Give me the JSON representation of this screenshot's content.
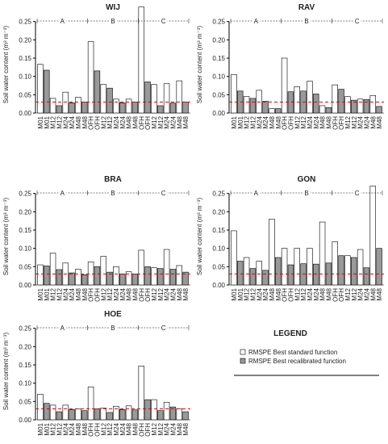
{
  "chart_data": [
    {
      "type": "bar",
      "title": "WIJ",
      "y_label": "Soil water content (m³ m⁻³)",
      "categories": [
        "M01",
        "M12",
        "M24",
        "M48",
        "OFH",
        "M12",
        "M24",
        "M48",
        "OFH",
        "M12",
        "M24",
        "M48"
      ],
      "groups": [
        "A",
        "B",
        "C"
      ],
      "series": [
        {
          "name": "RMSPE Best standard function",
          "color": "#ffffff",
          "values": [
            0.133,
            0.04,
            0.057,
            0.043,
            0.195,
            0.078,
            0.038,
            0.038,
            0.29,
            0.078,
            0.08,
            0.088
          ]
        },
        {
          "name": "RMSPE Best recalibrated function",
          "color": "#999999",
          "values": [
            0.117,
            0.02,
            0.028,
            0.03,
            0.115,
            0.068,
            0.028,
            0.03,
            0.085,
            0.02,
            0.027,
            0.03
          ]
        }
      ],
      "ylim": [
        0,
        0.3
      ],
      "yticks": [
        {
          "value": 0,
          "label": "0.00"
        },
        0.05,
        {
          "value": 0.1,
          "label": "0.10"
        },
        0.15,
        {
          "value": 0.2,
          "label": "0.20"
        },
        0.25
      ],
      "reference_line": 0.03,
      "reference_color": "#e00000"
    },
    {
      "type": "bar",
      "title": "RAV",
      "y_label": "Soil water content (m³ m⁻³)",
      "categories": [
        "M01",
        "M12",
        "M24",
        "M48",
        "OFH",
        "M12",
        "M24",
        "M48",
        "OFH",
        "M12",
        "M24",
        "M48"
      ],
      "groups": [
        "A",
        "B",
        "C"
      ],
      "series": [
        {
          "name": "RMSPE Best standard function",
          "color": "#ffffff",
          "values": [
            0.105,
            0.045,
            0.062,
            0.012,
            0.15,
            0.072,
            0.087,
            0.02,
            0.077,
            0.045,
            0.038,
            0.048
          ]
        },
        {
          "name": "RMSPE Best recalibrated function",
          "color": "#999999",
          "values": [
            0.06,
            0.04,
            0.032,
            0.012,
            0.058,
            0.06,
            0.052,
            0.015,
            0.065,
            0.035,
            0.037,
            0.018
          ]
        }
      ],
      "ylim": [
        0,
        0.3
      ],
      "yticks": [
        {
          "value": 0,
          "label": "0.00"
        },
        0.05,
        {
          "value": 0.1,
          "label": "0.10"
        },
        0.15,
        {
          "value": 0.2,
          "label": "0.20"
        },
        0.25
      ],
      "reference_line": 0.03,
      "reference_color": "#e00000"
    },
    {
      "type": "bar",
      "title": "BRA",
      "y_label": "Soil water content (m³ m⁻³)",
      "categories": [
        "M01",
        "M12",
        "M24",
        "M48",
        "OFH",
        "M12",
        "M24",
        "M48",
        "OFH",
        "M12",
        "M24",
        "M48"
      ],
      "groups": [
        "A",
        "B",
        "C"
      ],
      "series": [
        {
          "name": "RMSPE Best standard function",
          "color": "#ffffff",
          "values": [
            0.055,
            0.087,
            0.06,
            0.043,
            0.063,
            0.078,
            0.05,
            0.036,
            0.095,
            0.047,
            0.097,
            0.053
          ]
        },
        {
          "name": "RMSPE Best recalibrated function",
          "color": "#999999",
          "values": [
            0.052,
            0.042,
            0.033,
            0.028,
            0.05,
            0.035,
            0.03,
            0.03,
            0.05,
            0.045,
            0.043,
            0.035
          ]
        }
      ],
      "ylim": [
        0,
        0.3
      ],
      "yticks": [
        {
          "value": 0,
          "label": "0.00"
        },
        0.05,
        {
          "value": 0.1,
          "label": "0.10"
        },
        0.15,
        {
          "value": 0.2,
          "label": "0.20"
        },
        0.25
      ],
      "reference_line": 0.03,
      "reference_color": "#e00000"
    },
    {
      "type": "bar",
      "title": "GON",
      "y_label": "Soil water content (m³ m⁻³)",
      "categories": [
        "M01",
        "M12",
        "M24",
        "M48",
        "OFH",
        "M12",
        "M24",
        "M48",
        "OFH",
        "M12",
        "M24",
        "M48"
      ],
      "groups": [
        "A",
        "B",
        "C"
      ],
      "series": [
        {
          "name": "RMSPE Best standard function",
          "color": "#ffffff",
          "values": [
            0.148,
            0.075,
            0.065,
            0.18,
            0.1,
            0.1,
            0.1,
            0.172,
            0.118,
            0.08,
            0.097,
            0.27
          ]
        },
        {
          "name": "RMSPE Best recalibrated function",
          "color": "#999999",
          "values": [
            0.065,
            0.045,
            0.04,
            0.075,
            0.055,
            0.058,
            0.057,
            0.06,
            0.08,
            0.075,
            0.047,
            0.1
          ]
        }
      ],
      "ylim": [
        0,
        0.3
      ],
      "yticks": [
        {
          "value": 0,
          "label": "0.00"
        },
        0.05,
        {
          "value": 0.1,
          "label": "0.10"
        },
        0.15,
        {
          "value": 0.2,
          "label": "0.20"
        },
        0.25
      ],
      "reference_line": 0.03,
      "reference_color": "#e00000"
    },
    {
      "type": "bar",
      "title": "HOE",
      "y_label": "Soil water content (m³ m⁻³)",
      "categories": [
        "M01",
        "M12",
        "M24",
        "M48",
        "OFH",
        "M12",
        "M24",
        "M48",
        "OFH",
        "M12",
        "M24",
        "M48"
      ],
      "groups": [
        "A",
        "B",
        "C"
      ],
      "series": [
        {
          "name": "RMSPE Best standard function",
          "color": "#ffffff",
          "values": [
            0.07,
            0.04,
            0.04,
            0.03,
            0.09,
            0.032,
            0.037,
            0.038,
            0.147,
            0.055,
            0.048,
            0.03
          ]
        },
        {
          "name": "RMSPE Best recalibrated function",
          "color": "#999999",
          "values": [
            0.045,
            0.022,
            0.028,
            0.025,
            0.03,
            0.02,
            0.028,
            0.027,
            0.055,
            0.025,
            0.035,
            0.022
          ]
        }
      ],
      "ylim": [
        0,
        0.3
      ],
      "yticks": [
        {
          "value": 0,
          "label": "0.00"
        },
        0.05,
        {
          "value": 0.1,
          "label": "0.10"
        },
        0.15,
        {
          "value": 0.2,
          "label": "0.20"
        },
        0.25
      ],
      "reference_line": 0.03,
      "reference_color": "#e00000"
    }
  ],
  "legend": {
    "title": "LEGEND"
  }
}
